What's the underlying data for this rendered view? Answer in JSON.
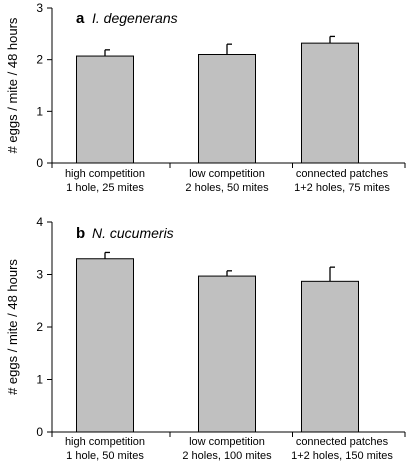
{
  "chart_data": [
    {
      "type": "bar",
      "panel_letter": "a",
      "title": "I. degenerans",
      "xlabel": "",
      "ylabel": "# eggs / mite / 48 hours",
      "ylim": [
        0,
        3
      ],
      "yticks": [
        "0",
        "1",
        "2",
        "3"
      ],
      "grid": false,
      "categories": [
        [
          "high competition",
          "1 hole, 25 mites"
        ],
        [
          "low competition",
          "2 holes, 50 mites"
        ],
        [
          "connected patches",
          "1+2 holes, 75 mites"
        ]
      ],
      "values": [
        2.07,
        2.1,
        2.32
      ],
      "error": [
        0.12,
        0.2,
        0.13
      ],
      "bar_color": "#c0c0c0"
    },
    {
      "type": "bar",
      "panel_letter": "b",
      "title": "N. cucumeris",
      "xlabel": "",
      "ylabel": "# eggs / mite / 48 hours",
      "ylim": [
        0,
        4
      ],
      "yticks": [
        "0",
        "1",
        "2",
        "3",
        "4"
      ],
      "grid": false,
      "categories": [
        [
          "high competition",
          "1 hole, 50 mites"
        ],
        [
          "low competition",
          "2 holes, 100 mites"
        ],
        [
          "connected patches",
          "1+2 holes, 150 mites"
        ]
      ],
      "values": [
        3.3,
        2.97,
        2.87
      ],
      "error": [
        0.12,
        0.1,
        0.27
      ],
      "bar_color": "#c0c0c0"
    }
  ]
}
